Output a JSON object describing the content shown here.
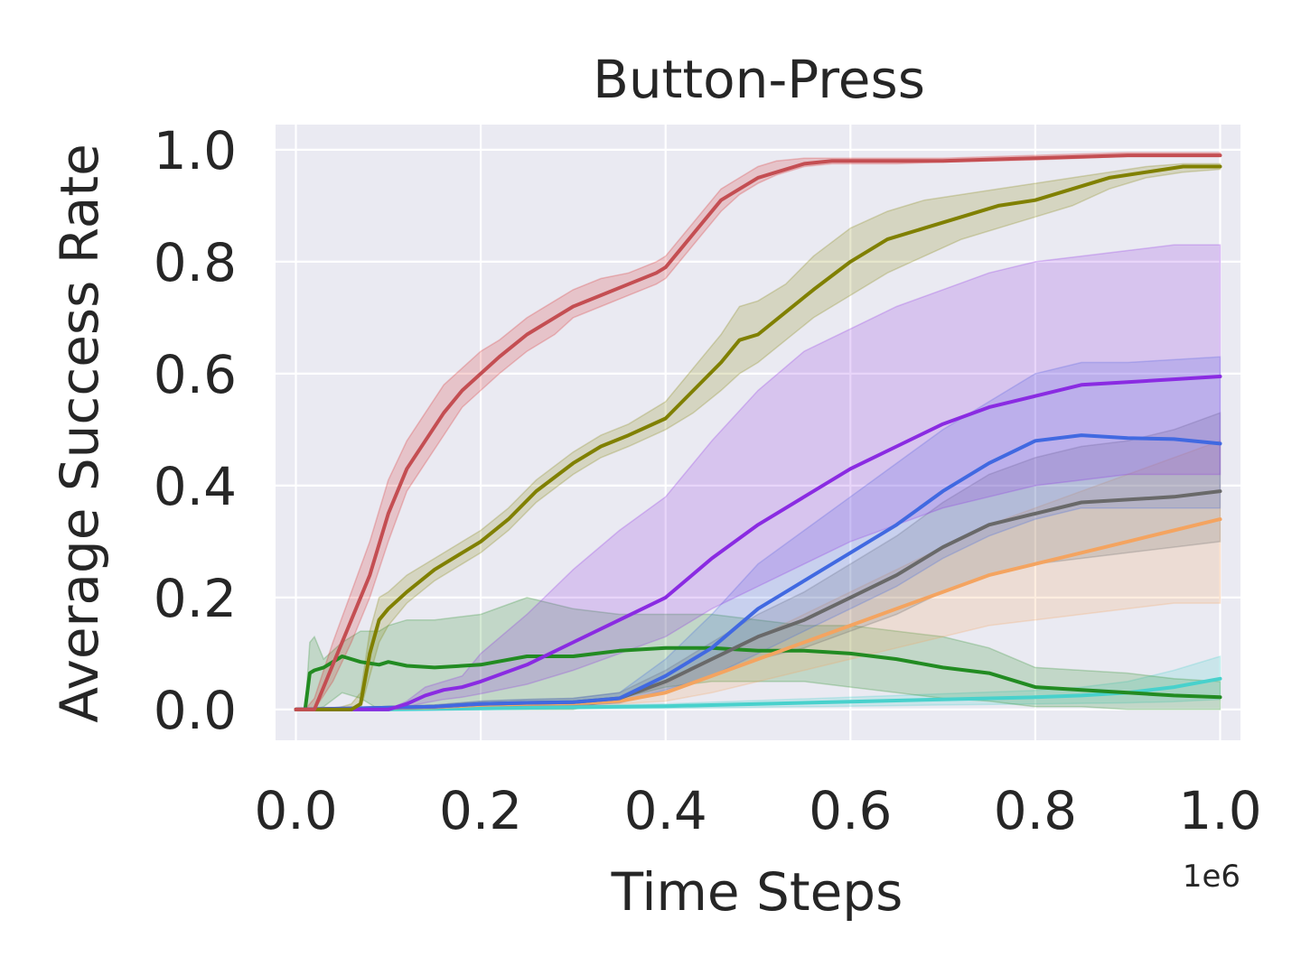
{
  "chart_data": {
    "type": "line",
    "title": "Button-Press",
    "xlabel": "Time Steps",
    "ylabel": "Average Success Rate",
    "x_offset_label": "1e6",
    "xlim": [
      -0.022,
      1.022
    ],
    "ylim": [
      -0.055,
      1.045
    ],
    "xticks": [
      0.0,
      0.2,
      0.4,
      0.6,
      0.8,
      1.0
    ],
    "xtick_labels": [
      "0.0",
      "0.2",
      "0.4",
      "0.6",
      "0.8",
      "1.0"
    ],
    "yticks": [
      0.0,
      0.2,
      0.4,
      0.6,
      0.8,
      1.0
    ],
    "ytick_labels": [
      "0.0",
      "0.2",
      "0.4",
      "0.6",
      "0.8",
      "1.0"
    ],
    "grid": true,
    "background": "#eaeaf2",
    "series": [
      {
        "color": "#d62728",
        "line_color": "#c44e52",
        "x": [
          0.0,
          0.01,
          0.02,
          0.04,
          0.06,
          0.08,
          0.1,
          0.12,
          0.14,
          0.16,
          0.18,
          0.2,
          0.22,
          0.25,
          0.28,
          0.3,
          0.33,
          0.36,
          0.39,
          0.4,
          0.42,
          0.44,
          0.46,
          0.48,
          0.5,
          0.52,
          0.55,
          0.58,
          0.6,
          0.65,
          0.7,
          0.8,
          0.9,
          1.0
        ],
        "y": [
          0.0,
          0.0,
          0.0,
          0.08,
          0.16,
          0.24,
          0.35,
          0.43,
          0.48,
          0.53,
          0.57,
          0.6,
          0.63,
          0.67,
          0.7,
          0.72,
          0.74,
          0.76,
          0.78,
          0.79,
          0.83,
          0.87,
          0.91,
          0.93,
          0.95,
          0.96,
          0.975,
          0.98,
          0.98,
          0.98,
          0.98,
          0.985,
          0.99,
          0.99
        ],
        "lower": [
          0.0,
          0.0,
          0.0,
          0.05,
          0.12,
          0.2,
          0.3,
          0.39,
          0.44,
          0.49,
          0.54,
          0.57,
          0.6,
          0.64,
          0.67,
          0.7,
          0.72,
          0.74,
          0.76,
          0.77,
          0.81,
          0.85,
          0.89,
          0.92,
          0.94,
          0.955,
          0.97,
          0.975,
          0.975,
          0.975,
          0.978,
          0.982,
          0.988,
          0.988
        ],
        "upper": [
          0.0,
          0.0,
          0.02,
          0.12,
          0.21,
          0.3,
          0.41,
          0.48,
          0.53,
          0.58,
          0.61,
          0.64,
          0.66,
          0.7,
          0.73,
          0.75,
          0.77,
          0.78,
          0.8,
          0.81,
          0.85,
          0.89,
          0.93,
          0.95,
          0.97,
          0.98,
          0.985,
          0.985,
          0.985,
          0.985,
          0.985,
          0.99,
          0.995,
          0.995
        ]
      },
      {
        "color": "#808000",
        "x": [
          0.0,
          0.04,
          0.06,
          0.07,
          0.08,
          0.09,
          0.1,
          0.12,
          0.15,
          0.18,
          0.2,
          0.23,
          0.26,
          0.3,
          0.33,
          0.36,
          0.4,
          0.43,
          0.46,
          0.48,
          0.5,
          0.53,
          0.56,
          0.6,
          0.64,
          0.68,
          0.72,
          0.76,
          0.8,
          0.84,
          0.88,
          0.92,
          0.96,
          1.0
        ],
        "y": [
          0.0,
          0.0,
          0.0,
          0.01,
          0.1,
          0.16,
          0.18,
          0.21,
          0.25,
          0.28,
          0.3,
          0.34,
          0.39,
          0.44,
          0.47,
          0.49,
          0.52,
          0.57,
          0.62,
          0.66,
          0.67,
          0.71,
          0.75,
          0.8,
          0.84,
          0.86,
          0.88,
          0.9,
          0.91,
          0.93,
          0.95,
          0.96,
          0.97,
          0.97
        ],
        "lower": [
          0.0,
          0.0,
          0.0,
          0.0,
          0.06,
          0.12,
          0.15,
          0.19,
          0.23,
          0.26,
          0.28,
          0.32,
          0.37,
          0.42,
          0.45,
          0.47,
          0.5,
          0.53,
          0.57,
          0.6,
          0.62,
          0.66,
          0.7,
          0.74,
          0.78,
          0.81,
          0.84,
          0.86,
          0.88,
          0.9,
          0.93,
          0.95,
          0.96,
          0.965
        ],
        "upper": [
          0.0,
          0.0,
          0.01,
          0.03,
          0.14,
          0.2,
          0.21,
          0.24,
          0.27,
          0.3,
          0.32,
          0.36,
          0.41,
          0.46,
          0.49,
          0.51,
          0.55,
          0.61,
          0.67,
          0.72,
          0.73,
          0.76,
          0.81,
          0.86,
          0.89,
          0.91,
          0.92,
          0.93,
          0.94,
          0.95,
          0.96,
          0.97,
          0.975,
          0.975
        ]
      },
      {
        "color": "#8a2be2",
        "x": [
          0.0,
          0.1,
          0.12,
          0.14,
          0.16,
          0.18,
          0.2,
          0.25,
          0.3,
          0.35,
          0.4,
          0.45,
          0.5,
          0.55,
          0.6,
          0.65,
          0.7,
          0.75,
          0.8,
          0.85,
          0.9,
          0.95,
          1.0
        ],
        "y": [
          0.0,
          0.0,
          0.01,
          0.025,
          0.035,
          0.04,
          0.05,
          0.08,
          0.12,
          0.16,
          0.2,
          0.27,
          0.33,
          0.38,
          0.43,
          0.47,
          0.51,
          0.54,
          0.56,
          0.58,
          0.585,
          0.59,
          0.595
        ],
        "lower": [
          0.0,
          0.0,
          0.005,
          0.012,
          0.018,
          0.022,
          0.028,
          0.045,
          0.07,
          0.1,
          0.13,
          0.18,
          0.22,
          0.26,
          0.3,
          0.33,
          0.36,
          0.38,
          0.4,
          0.41,
          0.42,
          0.42,
          0.42
        ],
        "upper": [
          0.0,
          0.0,
          0.015,
          0.04,
          0.05,
          0.06,
          0.1,
          0.17,
          0.25,
          0.32,
          0.38,
          0.48,
          0.57,
          0.64,
          0.68,
          0.72,
          0.75,
          0.78,
          0.8,
          0.81,
          0.82,
          0.83,
          0.83
        ]
      },
      {
        "color": "#4169e1",
        "x": [
          0.0,
          0.15,
          0.2,
          0.25,
          0.3,
          0.35,
          0.4,
          0.45,
          0.5,
          0.55,
          0.6,
          0.65,
          0.7,
          0.75,
          0.8,
          0.85,
          0.9,
          0.95,
          1.0
        ],
        "y": [
          0.0,
          0.005,
          0.01,
          0.012,
          0.013,
          0.02,
          0.06,
          0.11,
          0.18,
          0.23,
          0.28,
          0.33,
          0.39,
          0.44,
          0.48,
          0.49,
          0.485,
          0.483,
          0.475
        ],
        "lower": [
          0.0,
          0.002,
          0.004,
          0.006,
          0.007,
          0.012,
          0.035,
          0.06,
          0.1,
          0.14,
          0.18,
          0.22,
          0.27,
          0.31,
          0.34,
          0.36,
          0.36,
          0.36,
          0.36
        ],
        "upper": [
          0.0,
          0.008,
          0.015,
          0.018,
          0.02,
          0.03,
          0.09,
          0.17,
          0.26,
          0.32,
          0.38,
          0.44,
          0.5,
          0.55,
          0.6,
          0.62,
          0.62,
          0.625,
          0.63
        ]
      },
      {
        "color": "#696969",
        "x": [
          0.0,
          0.15,
          0.2,
          0.25,
          0.3,
          0.35,
          0.4,
          0.45,
          0.5,
          0.55,
          0.6,
          0.65,
          0.7,
          0.75,
          0.8,
          0.85,
          0.9,
          0.95,
          1.0
        ],
        "y": [
          0.0,
          0.005,
          0.01,
          0.012,
          0.013,
          0.02,
          0.05,
          0.09,
          0.13,
          0.16,
          0.2,
          0.24,
          0.29,
          0.33,
          0.35,
          0.37,
          0.375,
          0.38,
          0.39
        ],
        "lower": [
          0.0,
          0.002,
          0.004,
          0.006,
          0.007,
          0.012,
          0.03,
          0.06,
          0.09,
          0.11,
          0.14,
          0.17,
          0.21,
          0.24,
          0.26,
          0.27,
          0.28,
          0.29,
          0.3
        ],
        "upper": [
          0.0,
          0.008,
          0.015,
          0.018,
          0.02,
          0.03,
          0.07,
          0.12,
          0.17,
          0.21,
          0.26,
          0.31,
          0.37,
          0.42,
          0.45,
          0.47,
          0.48,
          0.5,
          0.53
        ]
      },
      {
        "color": "#f4a460",
        "x": [
          0.0,
          0.15,
          0.2,
          0.25,
          0.3,
          0.35,
          0.4,
          0.45,
          0.5,
          0.55,
          0.6,
          0.65,
          0.7,
          0.75,
          0.8,
          0.85,
          0.9,
          0.95,
          1.0
        ],
        "y": [
          0.0,
          0.004,
          0.008,
          0.01,
          0.011,
          0.015,
          0.03,
          0.06,
          0.09,
          0.12,
          0.15,
          0.18,
          0.21,
          0.24,
          0.26,
          0.28,
          0.3,
          0.32,
          0.34
        ],
        "lower": [
          0.0,
          0.002,
          0.004,
          0.006,
          0.007,
          0.01,
          0.015,
          0.03,
          0.05,
          0.07,
          0.09,
          0.11,
          0.13,
          0.15,
          0.16,
          0.17,
          0.18,
          0.19,
          0.19
        ],
        "upper": [
          0.0,
          0.006,
          0.012,
          0.014,
          0.015,
          0.02,
          0.045,
          0.09,
          0.13,
          0.17,
          0.21,
          0.25,
          0.29,
          0.33,
          0.36,
          0.39,
          0.42,
          0.45,
          0.48
        ]
      },
      {
        "color": "#228b22",
        "x": [
          0.0,
          0.01,
          0.015,
          0.02,
          0.03,
          0.05,
          0.07,
          0.09,
          0.1,
          0.12,
          0.15,
          0.2,
          0.25,
          0.3,
          0.35,
          0.4,
          0.45,
          0.5,
          0.55,
          0.6,
          0.65,
          0.7,
          0.75,
          0.8,
          0.85,
          0.9,
          0.95,
          1.0
        ],
        "y": [
          0.0,
          0.0,
          0.065,
          0.07,
          0.075,
          0.095,
          0.085,
          0.08,
          0.085,
          0.078,
          0.075,
          0.08,
          0.095,
          0.095,
          0.105,
          0.11,
          0.11,
          0.105,
          0.105,
          0.1,
          0.09,
          0.075,
          0.065,
          0.04,
          0.035,
          0.03,
          0.025,
          0.022
        ],
        "lower": [
          0.0,
          0.0,
          0.0,
          0.0,
          0.005,
          0.03,
          0.02,
          0.0,
          0.0,
          0.0,
          0.0,
          0.0,
          0.0,
          0.0,
          0.02,
          0.04,
          0.05,
          0.05,
          0.05,
          0.04,
          0.03,
          0.02,
          0.015,
          0.005,
          0.005,
          0.0,
          0.0,
          0.0
        ],
        "upper": [
          0.0,
          0.0,
          0.12,
          0.13,
          0.09,
          0.12,
          0.14,
          0.14,
          0.15,
          0.16,
          0.16,
          0.17,
          0.2,
          0.18,
          0.17,
          0.17,
          0.17,
          0.16,
          0.15,
          0.15,
          0.14,
          0.13,
          0.11,
          0.075,
          0.07,
          0.065,
          0.055,
          0.05
        ]
      },
      {
        "color": "#48d1cc",
        "x": [
          0.0,
          0.1,
          0.2,
          0.3,
          0.4,
          0.5,
          0.6,
          0.7,
          0.8,
          0.85,
          0.9,
          0.95,
          1.0
        ],
        "y": [
          0.0,
          0.0,
          0.002,
          0.004,
          0.006,
          0.01,
          0.014,
          0.018,
          0.022,
          0.025,
          0.03,
          0.04,
          0.055
        ],
        "lower": [
          0.0,
          0.0,
          0.0,
          0.001,
          0.002,
          0.004,
          0.006,
          0.008,
          0.01,
          0.011,
          0.012,
          0.014,
          0.018
        ],
        "upper": [
          0.0,
          0.0,
          0.004,
          0.007,
          0.01,
          0.016,
          0.022,
          0.028,
          0.034,
          0.04,
          0.05,
          0.07,
          0.095
        ]
      }
    ]
  }
}
